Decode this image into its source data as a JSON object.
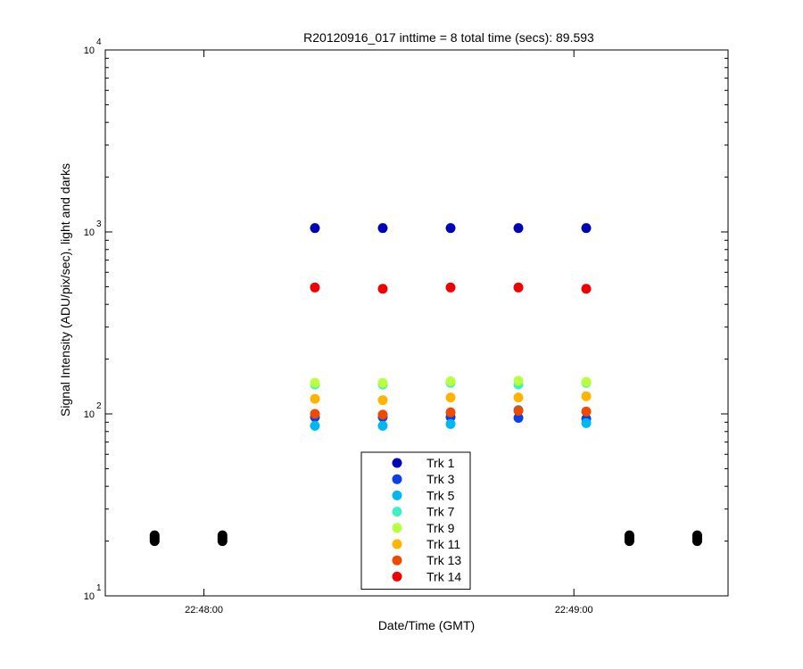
{
  "chart_data": {
    "type": "scatter",
    "title": "R20120916_017 inttime = 8 total time (secs): 89.593",
    "xlabel": "Date/Time (GMT)",
    "ylabel": "Signal Intensity (ADU/pix/sec), light and darks",
    "xlim": [
      "22:47:44",
      "22:49:25"
    ],
    "ylim": [
      10,
      10000
    ],
    "yscale": "log",
    "ytick_base": "10",
    "yticks": [
      {
        "value": 10,
        "exponent": "1"
      },
      {
        "value": 100,
        "exponent": "2"
      },
      {
        "value": 1000,
        "exponent": "3"
      },
      {
        "value": 10000,
        "exponent": "4"
      }
    ],
    "xticks": [
      "22:48:00",
      "22:49:00"
    ],
    "grid": false,
    "legend_position": "bottom-center",
    "light_times": [
      "22:48:18",
      "22:48:29",
      "22:48:40",
      "22:48:51",
      "22:49:02"
    ],
    "dark_times": [
      "22:47:52",
      "22:48:03",
      "22:49:09",
      "22:49:20"
    ],
    "dark_values": [
      20,
      20.5,
      21,
      21.5
    ],
    "dark_color": "#000000",
    "series": [
      {
        "name": "Trk 1",
        "color": "#0000b8",
        "values": [
          1050,
          1050,
          1050,
          1050,
          1050
        ]
      },
      {
        "name": "Trk 3",
        "color": "#0a40e8",
        "values": [
          96,
          96,
          96,
          95,
          94
        ]
      },
      {
        "name": "Trk 5",
        "color": "#00b8f0",
        "values": [
          86,
          86,
          88,
          105,
          89
        ]
      },
      {
        "name": "Trk 7",
        "color": "#40f0c0",
        "values": [
          145,
          145,
          148,
          145,
          148
        ]
      },
      {
        "name": "Trk 9",
        "color": "#b8ff40",
        "values": [
          148,
          148,
          151,
          152,
          150
        ]
      },
      {
        "name": "Trk 11",
        "color": "#ffb400",
        "values": [
          121,
          119,
          123,
          123,
          125
        ]
      },
      {
        "name": "Trk 13",
        "color": "#f04a00",
        "values": [
          100,
          99,
          102,
          104,
          103
        ]
      },
      {
        "name": "Trk 14",
        "color": "#f00000",
        "values": [
          495,
          487,
          495,
          495,
          487
        ]
      }
    ]
  }
}
